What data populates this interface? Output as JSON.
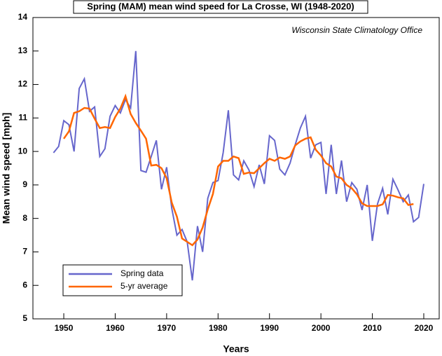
{
  "chart_data": {
    "type": "line",
    "title": "Spring (MAM) mean wind speed for La Crosse, WI (1948-2020)",
    "annotation": "Wisconsin State Climatology Office",
    "xlabel": "Years",
    "ylabel": "Mean wind speed [mph]",
    "x": [
      1948,
      1949,
      1950,
      1951,
      1952,
      1953,
      1954,
      1955,
      1956,
      1957,
      1958,
      1959,
      1960,
      1961,
      1962,
      1963,
      1964,
      1965,
      1966,
      1967,
      1968,
      1969,
      1970,
      1971,
      1972,
      1973,
      1974,
      1975,
      1976,
      1977,
      1978,
      1979,
      1980,
      1981,
      1982,
      1983,
      1984,
      1985,
      1986,
      1987,
      1988,
      1989,
      1990,
      1991,
      1992,
      1993,
      1994,
      1995,
      1996,
      1997,
      1998,
      1999,
      2000,
      2001,
      2002,
      2003,
      2004,
      2005,
      2006,
      2007,
      2008,
      2009,
      2010,
      2011,
      2012,
      2013,
      2014,
      2015,
      2016,
      2017,
      2018,
      2019,
      2020
    ],
    "series": [
      {
        "name": "Spring data",
        "color": "#6666cc",
        "values": [
          9.96,
          10.15,
          10.92,
          10.8,
          10.0,
          11.88,
          12.17,
          11.2,
          11.33,
          9.85,
          10.08,
          11.05,
          11.37,
          11.15,
          11.55,
          11.3,
          13.0,
          9.43,
          9.38,
          9.85,
          10.33,
          8.87,
          9.53,
          8.3,
          7.5,
          7.67,
          7.3,
          6.15,
          7.77,
          7.0,
          8.6,
          9.07,
          9.13,
          9.97,
          11.23,
          9.3,
          9.15,
          9.72,
          9.45,
          8.95,
          9.6,
          9.03,
          10.47,
          10.33,
          9.47,
          9.3,
          9.65,
          10.2,
          10.7,
          11.05,
          9.8,
          10.2,
          10.27,
          8.73,
          10.2,
          8.73,
          9.73,
          8.5,
          9.07,
          8.87,
          8.25,
          9.0,
          7.33,
          8.43,
          8.9,
          8.12,
          9.17,
          8.85,
          8.5,
          8.7,
          7.9,
          8.03,
          9.03
        ]
      },
      {
        "name": "5-yr average",
        "color": "#ff6600",
        "values": [
          null,
          null,
          10.38,
          10.6,
          11.15,
          11.2,
          11.3,
          11.28,
          10.98,
          10.7,
          10.73,
          10.7,
          11.03,
          11.28,
          11.65,
          11.12,
          10.85,
          10.62,
          10.38,
          9.58,
          9.6,
          9.5,
          9.2,
          8.47,
          8.05,
          7.4,
          7.3,
          7.2,
          7.37,
          7.73,
          8.27,
          8.73,
          9.55,
          9.72,
          9.72,
          9.85,
          9.8,
          9.33,
          9.37,
          9.35,
          9.5,
          9.65,
          9.78,
          9.72,
          9.82,
          9.78,
          9.85,
          10.18,
          10.3,
          10.38,
          10.42,
          10.05,
          9.88,
          9.65,
          9.55,
          9.25,
          9.2,
          9.0,
          8.9,
          8.72,
          8.45,
          8.37,
          8.37,
          8.37,
          8.42,
          8.7,
          8.68,
          8.63,
          8.6,
          8.4,
          8.43,
          null,
          null
        ]
      }
    ],
    "xlim": [
      1944,
      2023
    ],
    "xticks": [
      1950,
      1960,
      1970,
      1980,
      1990,
      2000,
      2010,
      2020
    ],
    "ylim": [
      5,
      14
    ],
    "yticks": [
      5,
      6,
      7,
      8,
      9,
      10,
      11,
      12,
      13,
      14
    ],
    "legend": "lower left"
  }
}
